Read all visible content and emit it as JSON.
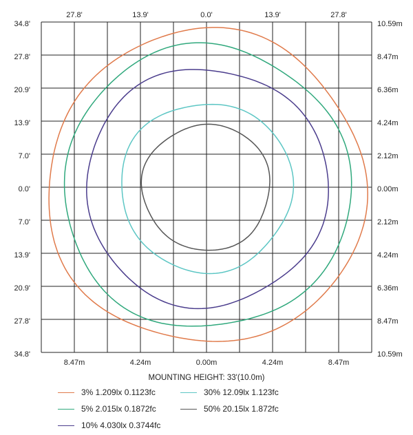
{
  "top_ticks": [
    "27.8'",
    "13.9'",
    "0.0'",
    "13.9'",
    "27.8'"
  ],
  "bottom_ticks": [
    "8.47m",
    "4.24m",
    "0.00m",
    "4.24m",
    "8.47m"
  ],
  "left_ticks": [
    "34.8'",
    "27.8'",
    "20.9'",
    "13.9'",
    "7.0'",
    "0.0'",
    "7.0'",
    "13.9'",
    "20.9'",
    "27.8'",
    "34.8'"
  ],
  "right_ticks": [
    "10.59m",
    "8.47m",
    "6.36m",
    "4.24m",
    "2.12m",
    "0.00m",
    "2.12m",
    "4.24m",
    "6.36m",
    "8.47m",
    "10.59m"
  ],
  "caption": "MOUNTING HEIGHT: 33'(10.0m)",
  "contours": [
    {
      "label": "3% 1.209lx 0.1123fc",
      "color": "#e07a4a",
      "radius_m": 10.2
    },
    {
      "label": "5% 2.015lx 0.1872fc",
      "color": "#2fa87c",
      "radius_m": 9.2
    },
    {
      "label": "10% 4.030lx 0.3744fc",
      "color": "#4a3c8c",
      "radius_m": 7.75
    },
    {
      "label": "30% 12.09lx 1.123fc",
      "color": "#5cc6c4",
      "radius_m": 5.5
    },
    {
      "label": "50% 20.15lx 1.872fc",
      "color": "#555555",
      "radius_m": 4.1
    }
  ]
}
